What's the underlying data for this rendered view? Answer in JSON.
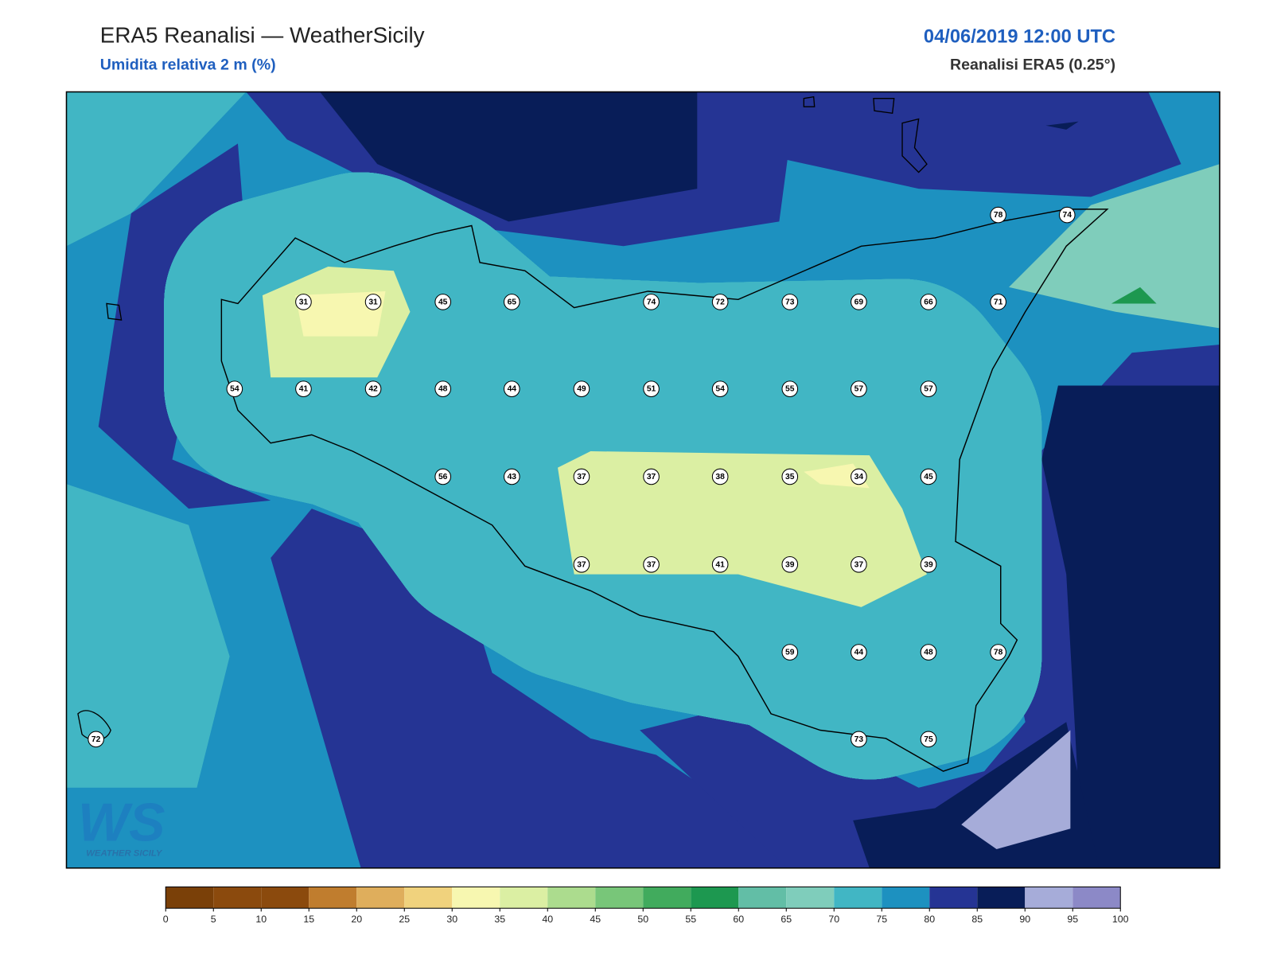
{
  "header": {
    "title": "ERA5 Reanalisi — WeatherSicily",
    "subtitle": "Umidita relativa 2 m (%)",
    "datetime": "04/06/2019 12:00 UTC",
    "source": "Reanalisi ERA5 (0.25°)"
  },
  "stations": [
    78,
    74,
    31,
    31,
    45,
    65,
    74,
    72,
    73,
    69,
    66,
    71,
    54,
    41,
    42,
    48,
    44,
    49,
    51,
    54,
    55,
    57,
    57,
    56,
    43,
    37,
    37,
    38,
    35,
    34,
    45,
    37,
    37,
    41,
    39,
    37,
    39,
    59,
    44,
    48,
    78,
    72,
    73,
    75
  ],
  "colorbar": {
    "ticks": [
      0,
      5,
      10,
      15,
      20,
      25,
      30,
      35,
      40,
      45,
      50,
      55,
      60,
      65,
      70,
      75,
      80,
      85,
      90,
      95,
      100
    ],
    "colors": [
      "#7a4008",
      "#8b4a0d",
      "#8b4a0d",
      "#c07d2e",
      "#dfae5c",
      "#f0d27d",
      "#f7f7b0",
      "#dbefa3",
      "#acdc8e",
      "#78c679",
      "#41ab5d",
      "#1d9850",
      "#62bea6",
      "#7fcdbb",
      "#41b6c4",
      "#1d91c0",
      "#253494",
      "#081d58",
      "#a6acd9",
      "#8c89c7"
    ]
  },
  "logo": {
    "mark": "WS",
    "text": "WEATHER SICILY"
  }
}
